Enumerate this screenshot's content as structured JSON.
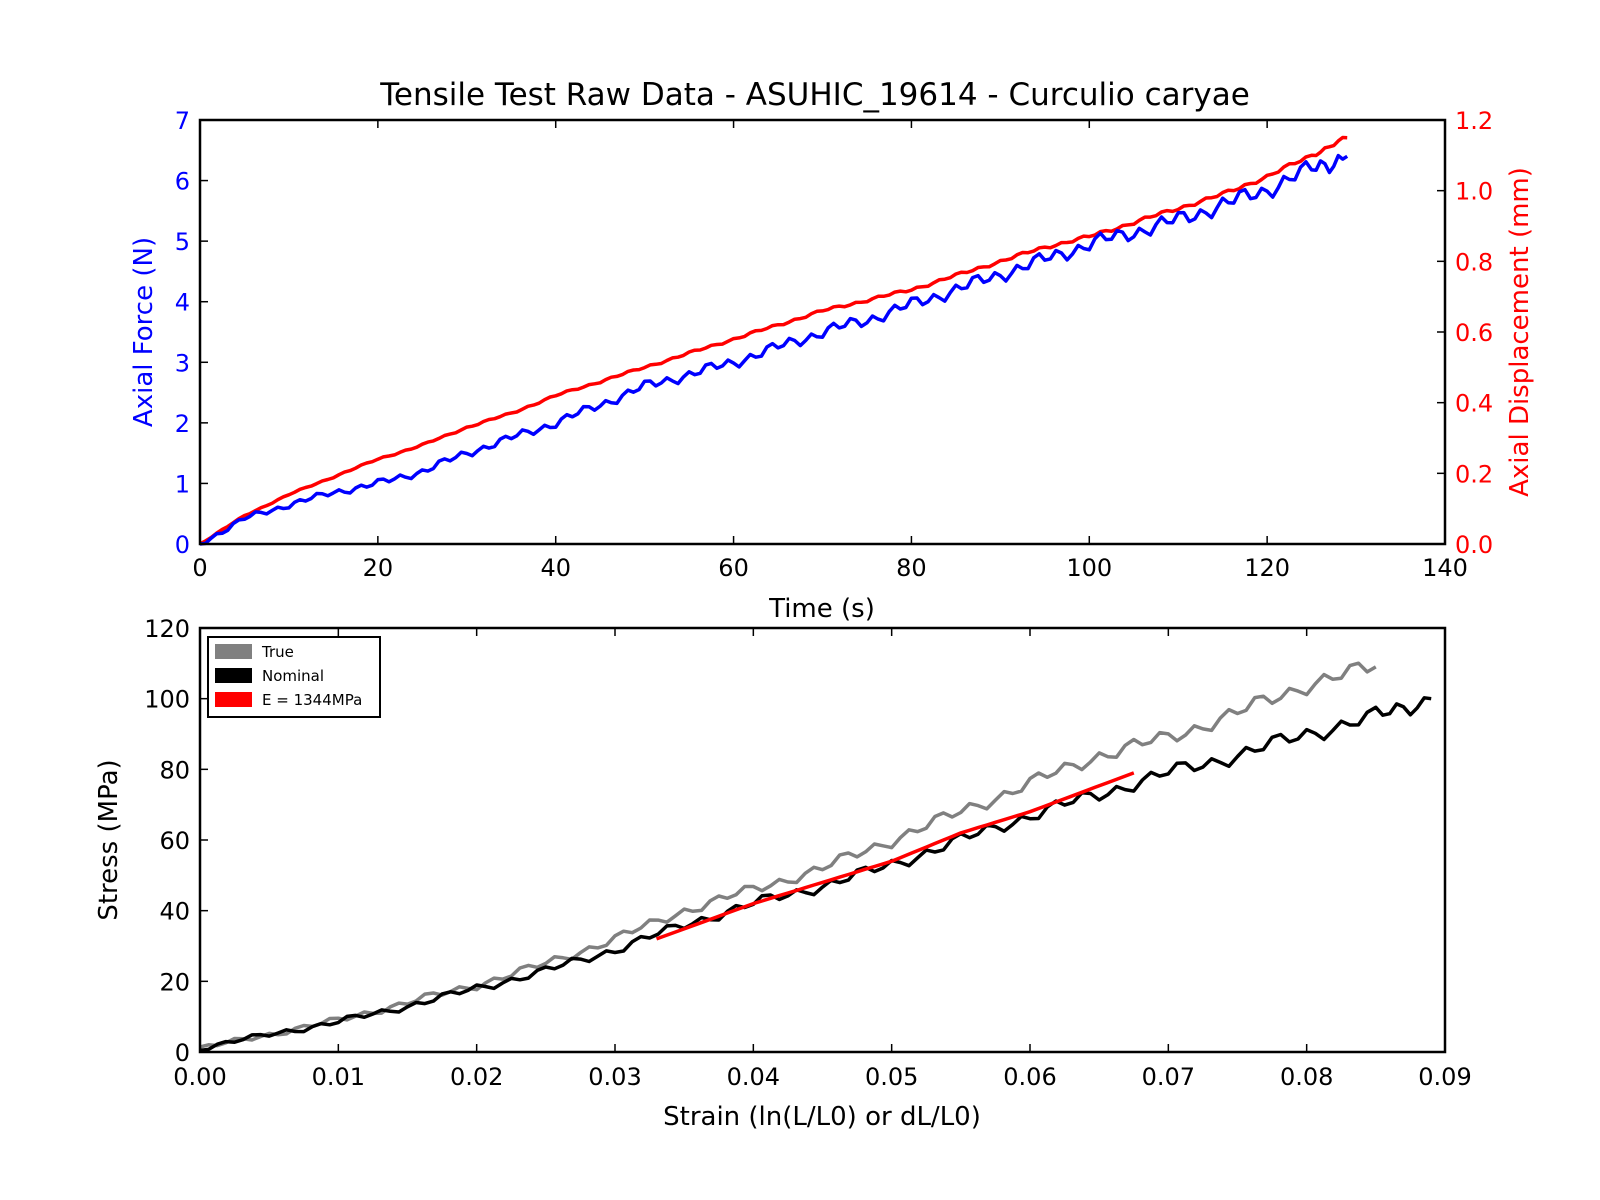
{
  "chart_data": [
    {
      "type": "line",
      "title": "Tensile Test Raw Data - ASUHIC_19614 - Curculio caryae",
      "xlabel": "Time (s)",
      "ylabel": "Axial Force (N)",
      "y2label": "Axial Displacement (mm)",
      "xlim": [
        0,
        140
      ],
      "ylim": [
        0,
        7
      ],
      "y2lim": [
        0,
        1.2
      ],
      "xticks": [
        "0",
        "20",
        "40",
        "60",
        "80",
        "100",
        "120",
        "140"
      ],
      "yticks": [
        "0",
        "1",
        "2",
        "3",
        "4",
        "5",
        "6",
        "7"
      ],
      "y2ticks": [
        "0.0",
        "0.2",
        "0.4",
        "0.6",
        "0.8",
        "1.0",
        "1.2"
      ],
      "grid": false,
      "series": [
        {
          "axis": "left",
          "color": "#0000ff",
          "x": [
            0,
            5,
            10,
            15,
            20,
            25,
            30,
            35,
            40,
            45,
            50,
            55,
            60,
            65,
            70,
            75,
            80,
            85,
            90,
            95,
            100,
            105,
            110,
            115,
            120,
            125,
            129
          ],
          "y": [
            0,
            0.42,
            0.65,
            0.85,
            1.0,
            1.2,
            1.5,
            1.75,
            2.0,
            2.3,
            2.6,
            2.8,
            3.0,
            3.25,
            3.5,
            3.7,
            3.95,
            4.2,
            4.45,
            4.7,
            4.95,
            5.15,
            5.35,
            5.6,
            5.85,
            6.2,
            6.4
          ]
        },
        {
          "axis": "right",
          "color": "#ff0000",
          "x": [
            0,
            5,
            10,
            15,
            20,
            25,
            30,
            35,
            40,
            45,
            50,
            55,
            60,
            65,
            70,
            75,
            80,
            85,
            90,
            95,
            100,
            105,
            110,
            115,
            120,
            125,
            129
          ],
          "y": [
            0,
            0.08,
            0.14,
            0.19,
            0.24,
            0.28,
            0.33,
            0.37,
            0.42,
            0.46,
            0.5,
            0.54,
            0.58,
            0.62,
            0.66,
            0.69,
            0.72,
            0.76,
            0.8,
            0.84,
            0.87,
            0.91,
            0.95,
            0.99,
            1.04,
            1.1,
            1.15
          ]
        }
      ]
    },
    {
      "type": "line",
      "xlabel": "Strain (ln(L/L0) or dL/L0)",
      "ylabel": "Stress (MPa)",
      "xlim": [
        0,
        0.09
      ],
      "ylim": [
        0,
        120
      ],
      "xticks": [
        "0.00",
        "0.01",
        "0.02",
        "0.03",
        "0.04",
        "0.05",
        "0.06",
        "0.07",
        "0.08",
        "0.09"
      ],
      "yticks": [
        "0",
        "20",
        "40",
        "60",
        "80",
        "100",
        "120"
      ],
      "grid": false,
      "legend_position": "top-left",
      "series": [
        {
          "name": "True",
          "color": "#808080",
          "x": [
            0,
            0.005,
            0.01,
            0.015,
            0.02,
            0.025,
            0.03,
            0.035,
            0.04,
            0.045,
            0.05,
            0.055,
            0.06,
            0.065,
            0.07,
            0.075,
            0.08,
            0.085
          ],
          "y": [
            1,
            5,
            9,
            14,
            19,
            25,
            32,
            40,
            46,
            52,
            60,
            68,
            76,
            84,
            89,
            96,
            104,
            109
          ]
        },
        {
          "name": "Nominal",
          "color": "#000000",
          "x": [
            0,
            0.005,
            0.01,
            0.015,
            0.02,
            0.025,
            0.03,
            0.035,
            0.04,
            0.045,
            0.05,
            0.055,
            0.06,
            0.065,
            0.07,
            0.075,
            0.08,
            0.085,
            0.089
          ],
          "y": [
            1,
            5,
            8.5,
            13,
            18,
            23,
            29,
            36,
            42,
            47,
            53,
            60,
            67,
            73,
            79,
            84,
            90,
            95,
            100
          ]
        },
        {
          "name": "E = 1344MPa",
          "color": "#ff0000",
          "x": [
            0.033,
            0.04,
            0.045,
            0.05,
            0.055,
            0.06,
            0.0675
          ],
          "y": [
            32,
            42,
            48,
            54,
            62,
            68,
            79
          ]
        }
      ]
    }
  ]
}
